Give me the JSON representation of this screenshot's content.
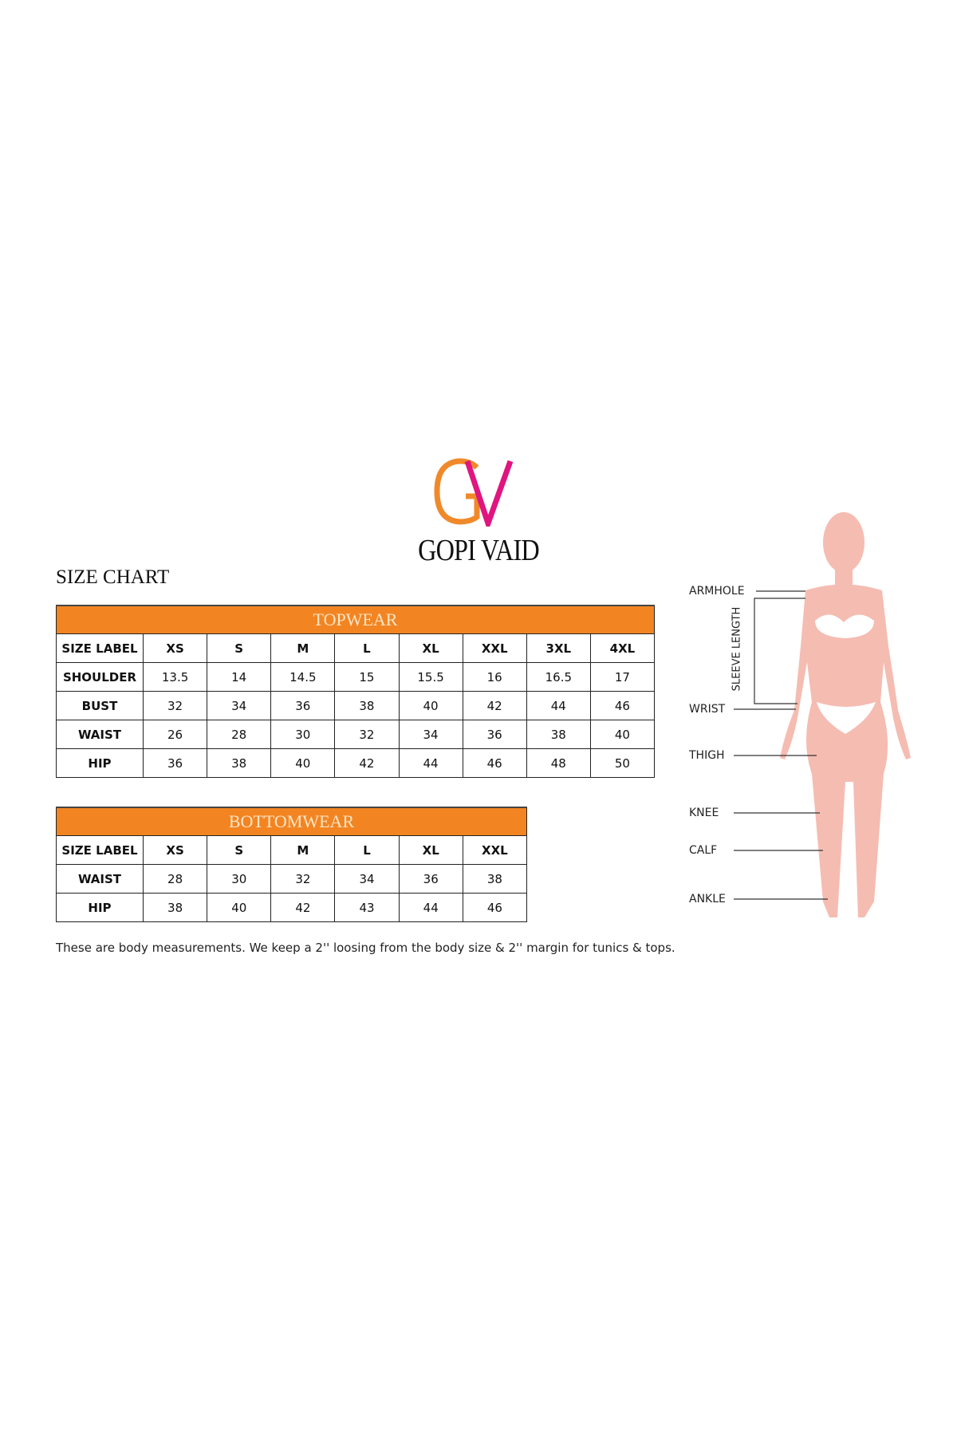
{
  "brand": {
    "logo_letters": "GV",
    "name": "GOPI VAID",
    "colors": {
      "g": "#f0892a",
      "v": "#e0157f"
    }
  },
  "title": "SIZE CHART",
  "accent_color": "#f28522",
  "topwear": {
    "heading": "TOPWEAR",
    "columns": [
      "SIZE LABEL",
      "XS",
      "S",
      "M",
      "L",
      "XL",
      "XXL",
      "3XL",
      "4XL"
    ],
    "rows": [
      [
        "SHOULDER",
        "13.5",
        "14",
        "14.5",
        "15",
        "15.5",
        "16",
        "16.5",
        "17"
      ],
      [
        "BUST",
        "32",
        "34",
        "36",
        "38",
        "40",
        "42",
        "44",
        "46"
      ],
      [
        "WAIST",
        "26",
        "28",
        "30",
        "32",
        "34",
        "36",
        "38",
        "40"
      ],
      [
        "HIP",
        "36",
        "38",
        "40",
        "42",
        "44",
        "46",
        "48",
        "50"
      ]
    ]
  },
  "bottomwear": {
    "heading": "BOTTOMWEAR",
    "columns": [
      "SIZE LABEL",
      "XS",
      "S",
      "M",
      "L",
      "XL",
      "XXL"
    ],
    "rows": [
      [
        "WAIST",
        "28",
        "30",
        "32",
        "34",
        "36",
        "38"
      ],
      [
        "HIP",
        "38",
        "40",
        "42",
        "43",
        "44",
        "46"
      ]
    ]
  },
  "footnote": "These are body measurements. We keep a 2'' loosing from the body size & 2'' margin for tunics & tops.",
  "figure": {
    "labels": [
      "ARMHOLE",
      "WRIST",
      "THIGH",
      "KNEE",
      "CALF",
      "ANKLE"
    ],
    "sleeve_label": "SLEEVE LENGTH",
    "skin_color": "#f5bcb2"
  }
}
